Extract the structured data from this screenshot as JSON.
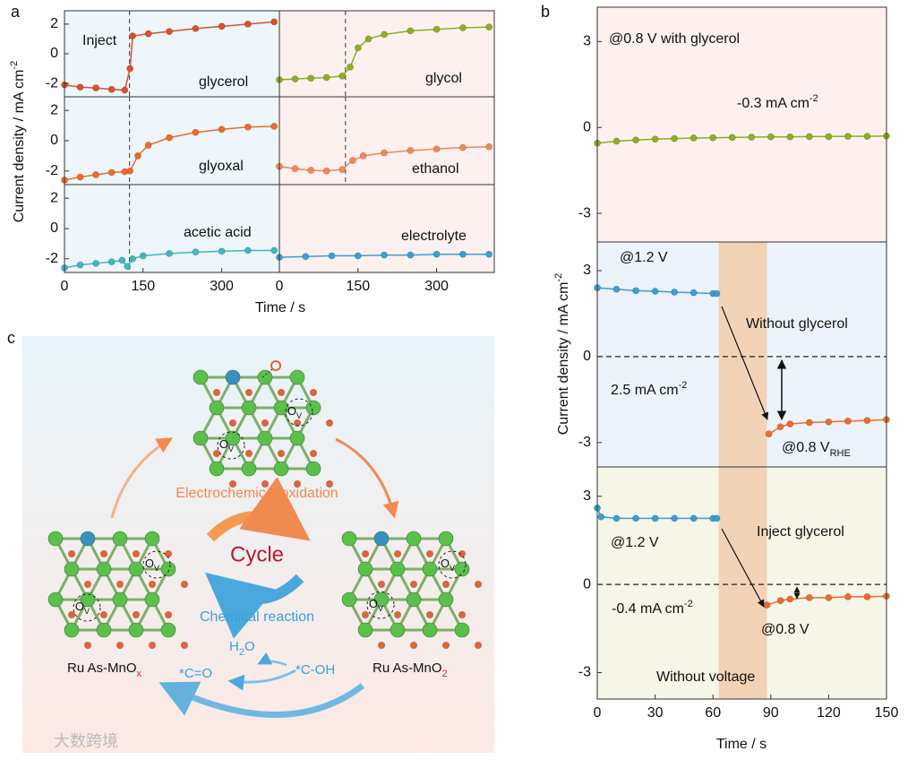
{
  "panel_labels": [
    "a",
    "b",
    "c"
  ],
  "figure_a": {
    "ylabel": {
      "text": "Current density / mA cm",
      "sup": "-2"
    },
    "xlabel": "Time / s"
  },
  "figure_b": {
    "ylabel": {
      "text": "Current density / mA cm",
      "sup": "-2"
    },
    "xlabel": "Time / s"
  },
  "chart_data": [
    {
      "type": "line",
      "background": "#eef6fb",
      "xlim": [
        0,
        410
      ],
      "ylim": [
        -2.9,
        2.9
      ],
      "yticks": [
        -2,
        0,
        2
      ],
      "marker_x": 124,
      "annotations": [
        {
          "text": "Inject"
        },
        {
          "text": "glycerol"
        }
      ],
      "series": [
        {
          "color": "#d9502a",
          "x": [
            0,
            30,
            60,
            90,
            115,
            125,
            130,
            160,
            200,
            250,
            300,
            350,
            400
          ],
          "values": [
            -2.1,
            -2.25,
            -2.3,
            -2.4,
            -2.45,
            -1.0,
            1.2,
            1.35,
            1.5,
            1.7,
            1.85,
            2.0,
            2.15
          ]
        }
      ]
    },
    {
      "type": "line",
      "background": "#fdf1ef",
      "xlim": [
        0,
        410
      ],
      "ylim": [
        -2.9,
        2.9
      ],
      "marker_x": 126,
      "annotations": [
        {
          "text": "glycol"
        }
      ],
      "series": [
        {
          "color": "#8cb020",
          "x": [
            0,
            30,
            60,
            90,
            120,
            135,
            150,
            170,
            200,
            250,
            300,
            350,
            400
          ],
          "values": [
            -1.75,
            -1.7,
            -1.65,
            -1.6,
            -1.5,
            -0.9,
            0.4,
            1.0,
            1.3,
            1.55,
            1.65,
            1.75,
            1.8
          ]
        }
      ]
    },
    {
      "type": "line",
      "background": "#eef6fb",
      "xlim": [
        0,
        410
      ],
      "ylim": [
        -2.9,
        2.9
      ],
      "yticks": [
        -2,
        0,
        2
      ],
      "marker_x": 124,
      "annotations": [
        {
          "text": "glyoxal"
        }
      ],
      "series": [
        {
          "color": "#ef6a2a",
          "x": [
            0,
            30,
            60,
            90,
            115,
            125,
            140,
            160,
            200,
            250,
            300,
            350,
            400
          ],
          "values": [
            -2.6,
            -2.4,
            -2.25,
            -2.1,
            -2.05,
            -2.0,
            -1.0,
            -0.3,
            0.2,
            0.55,
            0.75,
            0.9,
            0.95
          ]
        }
      ]
    },
    {
      "type": "line",
      "background": "#fdf1ef",
      "xlim": [
        0,
        410
      ],
      "ylim": [
        -2.9,
        2.9
      ],
      "marker_x": 126,
      "annotations": [
        {
          "text": "ethanol"
        }
      ],
      "series": [
        {
          "color": "#f0885a",
          "x": [
            0,
            30,
            60,
            90,
            120,
            140,
            160,
            200,
            250,
            300,
            350,
            400
          ],
          "values": [
            -1.7,
            -1.85,
            -1.95,
            -2.0,
            -1.9,
            -1.3,
            -1.0,
            -0.8,
            -0.65,
            -0.55,
            -0.45,
            -0.4
          ]
        }
      ]
    },
    {
      "type": "line",
      "background": "#eef6fb",
      "xlim": [
        0,
        410
      ],
      "ylim": [
        -2.9,
        2.9
      ],
      "yticks": [
        -2,
        0,
        2
      ],
      "xticks": [
        0,
        150,
        300
      ],
      "marker_x": 124,
      "annotations": [
        {
          "text": "acetic acid"
        }
      ],
      "series": [
        {
          "color": "#40b7bf",
          "x": [
            0,
            30,
            60,
            90,
            110,
            120,
            130,
            150,
            200,
            250,
            300,
            350,
            400
          ],
          "values": [
            -2.6,
            -2.4,
            -2.3,
            -2.2,
            -2.1,
            -2.5,
            -2.0,
            -1.8,
            -1.65,
            -1.55,
            -1.5,
            -1.45,
            -1.45
          ]
        }
      ]
    },
    {
      "type": "line",
      "background": "#fdf1ef",
      "xlim": [
        0,
        410
      ],
      "ylim": [
        -2.9,
        2.9
      ],
      "xticks": [
        0,
        150,
        300
      ],
      "annotations": [
        {
          "text": "electrolyte"
        }
      ],
      "series": [
        {
          "color": "#3a9fd2",
          "x": [
            0,
            50,
            100,
            150,
            200,
            250,
            300,
            350,
            400
          ],
          "values": [
            -1.9,
            -1.85,
            -1.8,
            -1.8,
            -1.75,
            -1.75,
            -1.7,
            -1.7,
            -1.7
          ]
        }
      ]
    },
    {
      "type": "line",
      "background": "#fdf0ee",
      "xlim": [
        0,
        150
      ],
      "ylim": [
        -4,
        4.2
      ],
      "yticks": [
        -3,
        0,
        3
      ],
      "annotations": [
        {
          "text": "@0.8 V with glycerol"
        },
        {
          "text": "-0.3 mA cm",
          "sup": "-2"
        }
      ],
      "series": [
        {
          "color": "#8cb020",
          "x": [
            0,
            10,
            20,
            30,
            40,
            50,
            60,
            70,
            80,
            90,
            100,
            110,
            120,
            130,
            140,
            150
          ],
          "values": [
            -0.55,
            -0.48,
            -0.44,
            -0.41,
            -0.39,
            -0.37,
            -0.36,
            -0.35,
            -0.34,
            -0.33,
            -0.33,
            -0.32,
            -0.32,
            -0.31,
            -0.31,
            -0.3
          ]
        }
      ]
    },
    {
      "type": "line",
      "background": "#edf3fb",
      "xlim": [
        0,
        150
      ],
      "ylim": [
        -3.85,
        4.0
      ],
      "yticks": [
        -3,
        0,
        3
      ],
      "hline": 0,
      "shade_x": [
        63,
        88
      ],
      "shade_color": "#f2d3b6",
      "annotations": [
        {
          "text": "@1.2 V"
        },
        {
          "text": "Without glycerol"
        },
        {
          "text": "2.5 mA cm",
          "sup": "-2"
        },
        {
          "text": "@0.8 V",
          "sub": "RHE"
        }
      ],
      "series": [
        {
          "color": "#3a9fd2",
          "x": [
            0,
            10,
            20,
            30,
            40,
            50,
            60,
            62
          ],
          "values": [
            2.4,
            2.35,
            2.3,
            2.28,
            2.25,
            2.23,
            2.2,
            2.2
          ]
        },
        {
          "color": "#ef6a2a",
          "x": [
            89,
            95,
            100,
            110,
            120,
            130,
            140,
            150
          ],
          "values": [
            -2.7,
            -2.45,
            -2.35,
            -2.3,
            -2.28,
            -2.25,
            -2.23,
            -2.2
          ]
        }
      ]
    },
    {
      "type": "line",
      "background": "#f5f5e8",
      "xlim": [
        0,
        150
      ],
      "ylim": [
        -3.9,
        4.0
      ],
      "yticks": [
        -3,
        0,
        3
      ],
      "xticks": [
        0,
        30,
        60,
        90,
        120,
        150
      ],
      "hline": 0,
      "shade_x": [
        63,
        88
      ],
      "shade_color": "#f2d3b6",
      "annotations": [
        {
          "text": "@1.2 V"
        },
        {
          "text": "Inject glycerol"
        },
        {
          "text": "-0.4 mA cm",
          "sup": "-2"
        },
        {
          "text": "@0.8 V"
        },
        {
          "text": "Without voltage"
        }
      ],
      "series": [
        {
          "color": "#3a9fd2",
          "x": [
            0,
            2,
            10,
            20,
            30,
            40,
            50,
            60,
            62
          ],
          "values": [
            2.6,
            2.3,
            2.25,
            2.25,
            2.25,
            2.25,
            2.25,
            2.25,
            2.25
          ]
        },
        {
          "color": "#ef6a2a",
          "x": [
            88,
            95,
            100,
            110,
            120,
            130,
            140,
            150
          ],
          "values": [
            -0.7,
            -0.55,
            -0.5,
            -0.45,
            -0.45,
            -0.42,
            -0.42,
            -0.4
          ]
        }
      ]
    }
  ],
  "diagram": {
    "top_label": "Electrochemical oxidation",
    "center_label": "Cycle",
    "bottom_label": "Chemical reaction",
    "left_material": {
      "text": "Ru As-MnO",
      "sub": "x"
    },
    "right_material": {
      "text": "Ru As-MnO",
      "sub": "2"
    },
    "vacancy": {
      "text": "O",
      "sub": "V"
    },
    "water": {
      "text": "H",
      "sub": "2",
      "rest": "O"
    },
    "carbonyl": "*C=O",
    "hydroxyl": "*C-OH"
  },
  "watermark": "大数跨境"
}
